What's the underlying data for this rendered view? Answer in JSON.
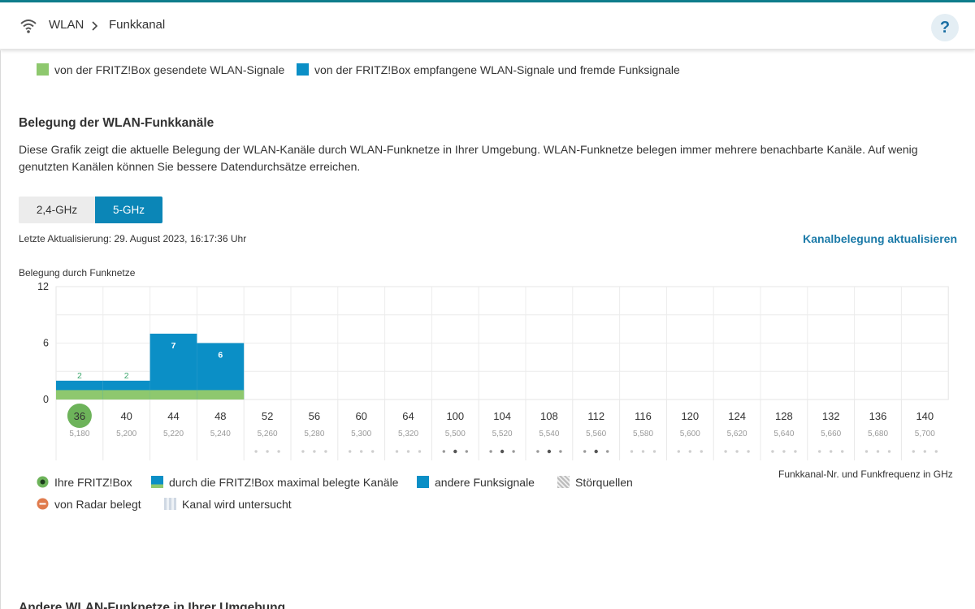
{
  "breadcrumb": {
    "section": "WLAN",
    "page": "Funkkanal"
  },
  "help_label": "?",
  "legend_top": {
    "sent": "von der FRITZ!Box gesendete WLAN-Signale",
    "received": "von der FRITZ!Box empfangene WLAN-Signale und fremde Funksignale"
  },
  "section": {
    "title": "Belegung der WLAN-Funkkanäle",
    "description": "Diese Grafik zeigt die aktuelle Belegung der WLAN-Kanäle durch WLAN-Funknetze in Ihrer Umgebung. WLAN-Funknetze belegen immer mehrere benachbarte Kanäle. Auf wenig genutzten Kanälen können Sie bessere Datendurchsätze erreichen."
  },
  "tabs": {
    "ghz24": "2,4-GHz",
    "ghz5": "5-GHz",
    "active": "5-GHz"
  },
  "last_update": "Letzte Aktualisierung: 29. August 2023, 16:17:36 Uhr",
  "refresh_link": "Kanalbelegung aktualisieren",
  "chart_data": {
    "type": "bar",
    "ylabel": "Belegung durch Funknetze",
    "y_ticks": [
      "12",
      "6",
      "0"
    ],
    "ylim": [
      0,
      12
    ],
    "channels": [
      "36",
      "40",
      "44",
      "48",
      "52",
      "56",
      "60",
      "64",
      "100",
      "104",
      "108",
      "112",
      "116",
      "120",
      "124",
      "128",
      "132",
      "136",
      "140"
    ],
    "frequencies": [
      "5,180",
      "5,200",
      "5,220",
      "5,240",
      "5,260",
      "5,280",
      "5,300",
      "5,320",
      "5,500",
      "5,520",
      "5,540",
      "5,560",
      "5,580",
      "5,600",
      "5,620",
      "5,640",
      "5,660",
      "5,680",
      "5,700"
    ],
    "own_channel": "36",
    "occupancy": [
      2,
      2,
      7,
      6,
      0,
      0,
      0,
      0,
      0,
      0,
      0,
      0,
      0,
      0,
      0,
      0,
      0,
      0,
      0
    ],
    "own_occupancy": [
      1,
      1,
      1,
      1,
      0,
      0,
      0,
      0,
      0,
      0,
      0,
      0,
      0,
      0,
      0,
      0,
      0,
      0,
      0
    ],
    "bar_labels": [
      "2",
      "2",
      "7",
      "6"
    ],
    "band_strength": [
      0,
      0,
      0,
      0,
      0,
      0,
      0,
      0,
      1,
      1,
      1,
      1,
      0,
      0,
      0,
      0,
      0,
      0,
      0
    ],
    "colors": {
      "other": "#0b8fc6",
      "own": "#8ec86e",
      "own_label": "#3aa66b",
      "own_marker": "#6db35a"
    },
    "x_caption": "Funkkanal-Nr. und Funkfrequenz in GHz"
  },
  "legend_bottom": {
    "own_box": "Ihre FRITZ!Box",
    "max_channels": "durch die FRITZ!Box maximal belegte Kanäle",
    "other_signals": "andere Funksignale",
    "interference": "Störquellen",
    "radar": "von Radar belegt",
    "checking": "Kanal wird untersucht"
  },
  "next_section_title": "Andere WLAN-Funknetze in Ihrer Umgebung"
}
